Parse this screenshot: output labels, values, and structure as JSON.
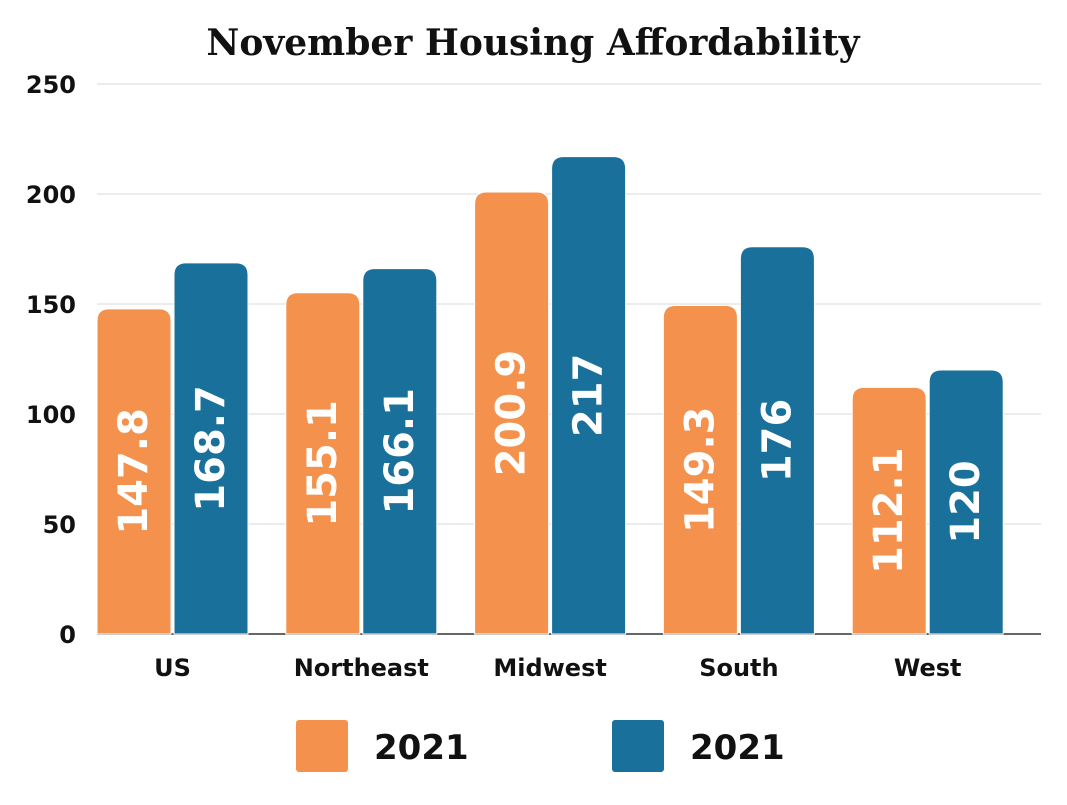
{
  "colors": {
    "series_a": "#F4924D",
    "series_b": "#19709A",
    "grid": "#d9d9d9",
    "axis": "#333333"
  },
  "chart_data": {
    "type": "bar",
    "title": "November Housing Affordability",
    "categories": [
      "US",
      "Northeast",
      "Midwest",
      "South",
      "West"
    ],
    "series": [
      {
        "name": "2021",
        "values": [
          147.8,
          155.1,
          200.9,
          149.3,
          112.1
        ],
        "labels": [
          "147.8",
          "155.1",
          "200.9",
          "149.3",
          "112.1"
        ]
      },
      {
        "name": "2021",
        "values": [
          168.7,
          166.1,
          217,
          176,
          120
        ],
        "labels": [
          "168.7",
          "166.1",
          "217",
          "176",
          "120"
        ]
      }
    ],
    "yticks": [
      "0",
      "50",
      "100",
      "150",
      "200",
      "250"
    ],
    "ylim": [
      0,
      250
    ],
    "grid": true,
    "legend": "bottom"
  }
}
